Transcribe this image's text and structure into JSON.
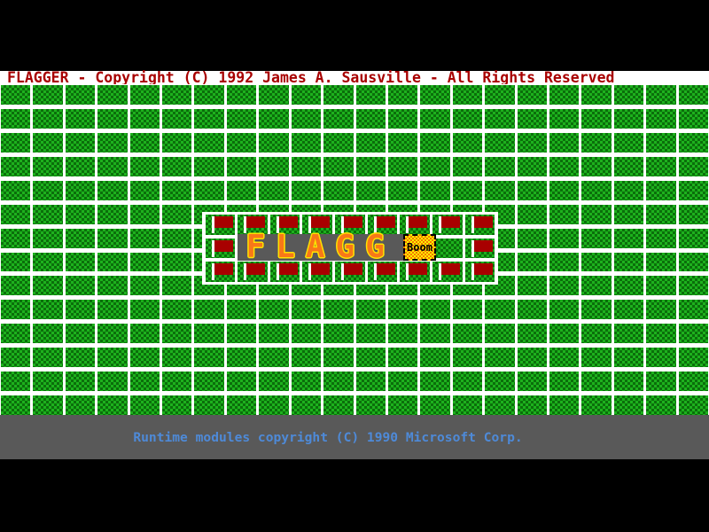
{
  "title_bar": {
    "text": "FLAGGER - Copyright (C) 1992 James A. Sausville - All Rights Reserved"
  },
  "status_bar": {
    "text": "Runtime modules copyright (C) 1990 Microsoft Corp."
  },
  "board": {
    "cols": 22,
    "rows": 14
  },
  "intro": {
    "banner_text": "FLAGG",
    "boom_label": "Boom",
    "flag_grid": [
      {
        "row": "top",
        "flag_cols": [
          0,
          1,
          2,
          3,
          4,
          5,
          6,
          7,
          8
        ],
        "plain_cols": []
      },
      {
        "row": "middle",
        "flag_cols": [
          0,
          8
        ],
        "plain_cols": [
          7
        ]
      },
      {
        "row": "bottom",
        "flag_cols": [
          0,
          1,
          2,
          3,
          4,
          5,
          6,
          7,
          8
        ],
        "plain_cols": []
      }
    ]
  },
  "colors": {
    "titlebar_bg": "#ffffff",
    "title_text": "#a80000",
    "tile_green": "#1db11d",
    "tile_dot": "#0b6f0b",
    "flag_red": "#a80000",
    "pole_white": "#ffffff",
    "banner_gray": "#595959",
    "letter_orange": "#f87818",
    "letter_outline": "#ffe400",
    "boom_bg": "#f8f800",
    "boom_dot": "#f87800",
    "status_bg": "#595959",
    "status_text": "#4e8ad8"
  }
}
